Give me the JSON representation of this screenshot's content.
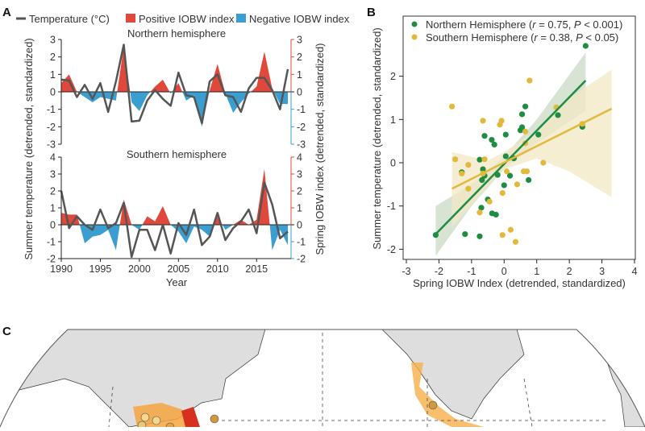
{
  "colors": {
    "temperature": "#555555",
    "positive": "#e0483b",
    "negative": "#3a9fd0",
    "north": "#1e8c42",
    "south": "#e3b93c",
    "land": "#dedede"
  },
  "chart_data": [
    {
      "type": "area+line",
      "panel": "A",
      "legend": {
        "temperature": "Temperature (°C)",
        "positive": "Positive IOBW index",
        "negative": "Negative IOBW index"
      },
      "ylabel_left": "Summer temperature (detrended, standardized)",
      "ylabel_right": "Spring IOBW index (detrended, standardized)",
      "xlabel": "Year",
      "x": [
        1990,
        1991,
        1992,
        1993,
        1994,
        1995,
        1996,
        1997,
        1998,
        1999,
        2000,
        2001,
        2002,
        2003,
        2004,
        2005,
        2006,
        2007,
        2008,
        2009,
        2010,
        2011,
        2012,
        2013,
        2014,
        2015,
        2016,
        2017,
        2018,
        2019
      ],
      "xticks": [
        1990,
        1995,
        2000,
        2005,
        2010,
        2015
      ],
      "subplots": [
        {
          "title": "Northern hemisphere",
          "ylim": [
            -3,
            3
          ],
          "yticks": [
            -3,
            -2,
            -1,
            0,
            1,
            2,
            3
          ],
          "temperature": [
            0.7,
            0.65,
            -0.3,
            0.4,
            -0.4,
            0.5,
            -1.15,
            0.6,
            2.7,
            -1.7,
            -1.65,
            -0.5,
            0.1,
            -0.4,
            -0.8,
            1.1,
            -0.2,
            -0.3,
            -1.8,
            0.6,
            1.0,
            -0.2,
            -0.3,
            -1.15,
            0.2,
            0.8,
            0.8,
            0.1,
            -1.0,
            1.3
          ],
          "iobw": [
            0.5,
            1.0,
            0.0,
            -0.3,
            -0.6,
            -0.3,
            -0.4,
            -0.5,
            2.6,
            -0.6,
            -1.1,
            -0.2,
            0.3,
            0.7,
            -0.1,
            0.5,
            -0.5,
            -0.2,
            -2.0,
            0.1,
            1.6,
            -0.1,
            -1.2,
            -0.6,
            -0.1,
            0.3,
            2.3,
            0.2,
            -0.7,
            -0.7
          ]
        },
        {
          "title": "Southern hemisphere",
          "ylim": [
            -2,
            4
          ],
          "yticks": [
            -2,
            -1,
            0,
            1,
            2,
            3,
            4
          ],
          "temperature": [
            2.0,
            -0.2,
            0.5,
            0.0,
            -0.3,
            0.9,
            -0.2,
            0.1,
            1.3,
            -1.9,
            -0.3,
            -0.3,
            -1.5,
            0.0,
            -1.7,
            0.1,
            -0.6,
            0.9,
            -1.2,
            -0.7,
            0.7,
            -0.9,
            -0.2,
            0.2,
            0.9,
            -0.5,
            2.5,
            1.2,
            -0.8,
            -0.4
          ],
          "iobw": [
            0.7,
            0.6,
            0.6,
            -1.1,
            -0.7,
            -0.6,
            -0.3,
            -1.5,
            1.5,
            0.0,
            -0.3,
            0.5,
            0.2,
            1.1,
            0.0,
            -0.4,
            -1.1,
            -0.1,
            -0.3,
            -0.7,
            0.5,
            -0.3,
            0.0,
            0.3,
            0.0,
            0.3,
            3.3,
            -1.5,
            -0.3,
            -1.2
          ]
        }
      ]
    },
    {
      "type": "scatter",
      "panel": "B",
      "xlabel": "Spring IOBW Index (detrended, standardized)",
      "ylabel": "Summer temperature (detrended, standardized)",
      "xlim": [
        -3,
        4
      ],
      "ylim": [
        -2.3,
        3.0
      ],
      "xticks": [
        -3,
        -2,
        -1,
        0,
        1,
        2,
        3,
        4
      ],
      "yticks": [
        -2,
        -1,
        0,
        1,
        2
      ],
      "legend_position": "top-left",
      "series": [
        {
          "name": "Northern Hemisphere",
          "stat_r": "r",
          "r_value": " = 0.75, ",
          "stat_p": "P",
          "p_value": " < 0.001)",
          "points": [
            [
              2.5,
              2.7
            ],
            [
              2.4,
              0.83
            ],
            [
              1.65,
              1.1
            ],
            [
              1.05,
              0.65
            ],
            [
              0.65,
              1.3
            ],
            [
              0.55,
              1.12
            ],
            [
              0.55,
              0.82
            ],
            [
              0.5,
              0.75
            ],
            [
              0.05,
              0.65
            ],
            [
              -0.6,
              0.62
            ],
            [
              -0.38,
              0.53
            ],
            [
              -0.3,
              0.42
            ],
            [
              0.05,
              0.15
            ],
            [
              -0.75,
              0.07
            ],
            [
              -0.65,
              -0.15
            ],
            [
              -1.3,
              -0.22
            ],
            [
              -0.2,
              -0.28
            ],
            [
              0.18,
              -0.3
            ],
            [
              -0.6,
              -0.3
            ],
            [
              -0.68,
              -0.4
            ],
            [
              0.75,
              -0.4
            ],
            [
              0.0,
              -0.52
            ],
            [
              -0.5,
              -0.85
            ],
            [
              -0.7,
              -1.04
            ],
            [
              -0.37,
              -1.17
            ],
            [
              -0.25,
              -1.2
            ],
            [
              -1.2,
              -1.65
            ],
            [
              -0.75,
              -1.7
            ],
            [
              -2.1,
              -1.67
            ],
            [
              0.3,
              0.1
            ]
          ],
          "fit": [
            [
              -2.1,
              -1.65
            ],
            [
              2.5,
              1.9
            ]
          ],
          "ci_band": [
            [
              -2.1,
              -2.15,
              -1.0
            ],
            [
              -1.0,
              -1.0,
              -0.5
            ],
            [
              0.0,
              -0.15,
              0.15
            ],
            [
              1.0,
              0.45,
              1.0
            ],
            [
              2.5,
              1.2,
              2.55
            ]
          ]
        },
        {
          "name": "Southern Hemisphere",
          "stat_r": "r",
          "r_value": " = 0.38, ",
          "stat_p": "P",
          "p_value": " < 0.05)",
          "points": [
            [
              -1.6,
              1.3
            ],
            [
              0.78,
              1.9
            ],
            [
              1.6,
              1.28
            ],
            [
              -0.65,
              0.97
            ],
            [
              -0.08,
              0.97
            ],
            [
              -0.13,
              0.88
            ],
            [
              0.65,
              0.72
            ],
            [
              -1.5,
              0.08
            ],
            [
              -0.6,
              0.08
            ],
            [
              -1.1,
              -0.05
            ],
            [
              -1.3,
              -0.25
            ],
            [
              0.08,
              -0.2
            ],
            [
              0.6,
              -0.2
            ],
            [
              0.7,
              -0.2
            ],
            [
              1.2,
              0.0
            ],
            [
              -1.1,
              -0.6
            ],
            [
              0.4,
              -0.5
            ],
            [
              -0.05,
              -0.7
            ],
            [
              -0.45,
              -0.9
            ],
            [
              -0.75,
              -1.15
            ],
            [
              0.2,
              -1.55
            ],
            [
              -0.05,
              -1.67
            ],
            [
              0.35,
              -1.83
            ],
            [
              2.4,
              0.9
            ],
            [
              -0.65,
              -0.25
            ],
            [
              0.65,
              0.45
            ]
          ],
          "fit": [
            [
              -1.6,
              -0.6
            ],
            [
              3.3,
              1.25
            ]
          ],
          "ci_band": [
            [
              -1.6,
              -1.5,
              0.25
            ],
            [
              -0.5,
              -0.55,
              0.05
            ],
            [
              0.0,
              -0.15,
              0.25
            ],
            [
              1.0,
              0.1,
              0.75
            ],
            [
              2.0,
              -0.2,
              1.5
            ],
            [
              3.3,
              -0.8,
              2.15
            ]
          ]
        }
      ]
    }
  ],
  "panel_labels": {
    "a": "A",
    "b": "B",
    "c": "C"
  }
}
